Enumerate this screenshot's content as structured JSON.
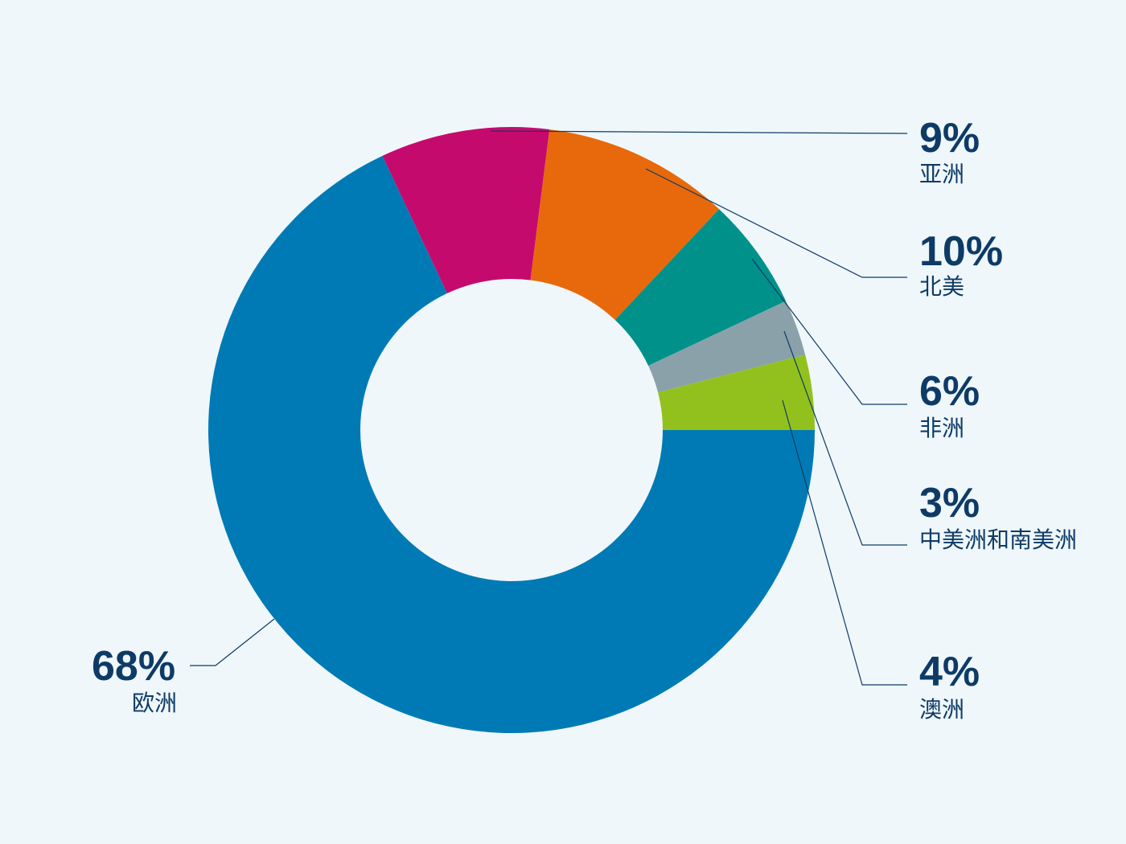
{
  "chart_data": {
    "type": "pie",
    "donut": true,
    "categories": [
      "欧洲",
      "亚洲",
      "北美",
      "非洲",
      "中美洲和南美洲",
      "澳洲"
    ],
    "values": [
      68,
      9,
      10,
      6,
      3,
      4
    ],
    "value_labels": [
      "68%",
      "9%",
      "10%",
      "6%",
      "3%",
      "4%"
    ],
    "colors": [
      "#007ab5",
      "#c50a6e",
      "#e8690b",
      "#00918a",
      "#8aa1aa",
      "#92c11e"
    ],
    "legend": "none"
  }
}
